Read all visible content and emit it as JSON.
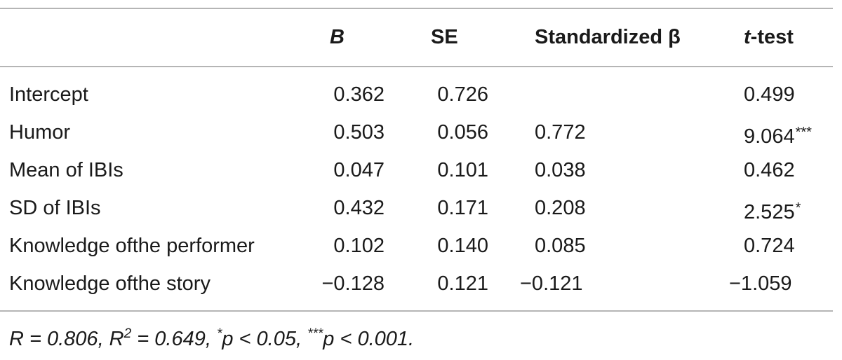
{
  "table": {
    "headers": {
      "b": "B",
      "se": "SE",
      "beta": "Standardized β",
      "t_italic": "t",
      "t_rest": "-test"
    },
    "rows": [
      {
        "label": "Intercept",
        "b": "0.362",
        "se": "0.726",
        "beta": "",
        "t": "0.499",
        "sig": ""
      },
      {
        "label": "Humor",
        "b": "0.503",
        "se": "0.056",
        "beta": "0.772",
        "t": "9.064",
        "sig": "***"
      },
      {
        "label": "Mean of IBIs",
        "b": "0.047",
        "se": "0.101",
        "beta": "0.038",
        "t": "0.462",
        "sig": ""
      },
      {
        "label": "SD of IBIs",
        "b": "0.432",
        "se": "0.171",
        "beta": "0.208",
        "t": "2.525",
        "sig": "*"
      },
      {
        "label": "Knowledge ofthe performer",
        "b": "0.102",
        "se": "0.140",
        "beta": "0.085",
        "t": "0.724",
        "sig": ""
      },
      {
        "label": "Knowledge ofthe story",
        "b": "−0.128",
        "se": "0.121",
        "beta": "−0.121",
        "t": "−1.059",
        "sig": ""
      }
    ],
    "note": {
      "part1": "R = 0.806, R",
      "sup": "2",
      "part2": " = 0.649, ",
      "sig1_mark": "*",
      "sig1_text": "p < 0.05, ",
      "sig2_mark": "***",
      "sig2_text": "p < 0.001."
    }
  }
}
